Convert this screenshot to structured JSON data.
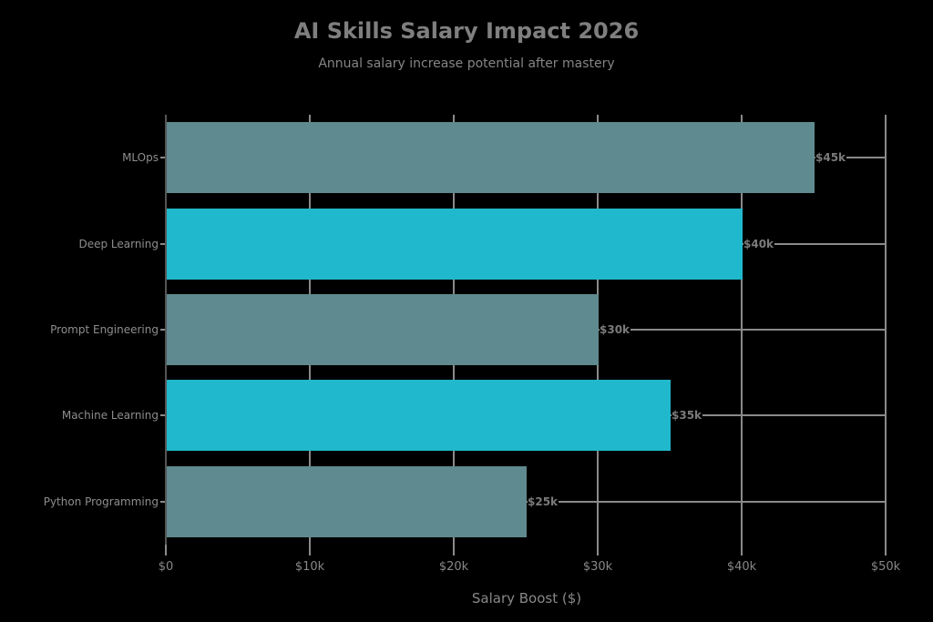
{
  "chart_data": {
    "type": "bar",
    "orientation": "horizontal",
    "title": "AI Skills Salary Impact 2026",
    "subtitle": "Annual salary increase potential after mastery",
    "xlabel": "Salary Boost ($)",
    "ylabel": "",
    "categories": [
      "MLOps",
      "Deep Learning",
      "Prompt Engineering",
      "Machine Learning",
      "Python Programming"
    ],
    "values": [
      45000,
      40000,
      30000,
      35000,
      25000
    ],
    "value_labels": [
      "$45k",
      "$40k",
      "$30k",
      "$35k",
      "$25k"
    ],
    "bar_colors": [
      "#5f8a8f",
      "#20b8cc",
      "#5f8a8f",
      "#20b8cc",
      "#5f8a8f"
    ],
    "xlim": [
      0,
      50000
    ],
    "xticks": [
      0,
      10000,
      20000,
      30000,
      40000,
      50000
    ],
    "xtick_labels": [
      "$0",
      "$10k",
      "$20k",
      "$30k",
      "$40k",
      "$50k"
    ],
    "grid": true,
    "legend": null
  }
}
